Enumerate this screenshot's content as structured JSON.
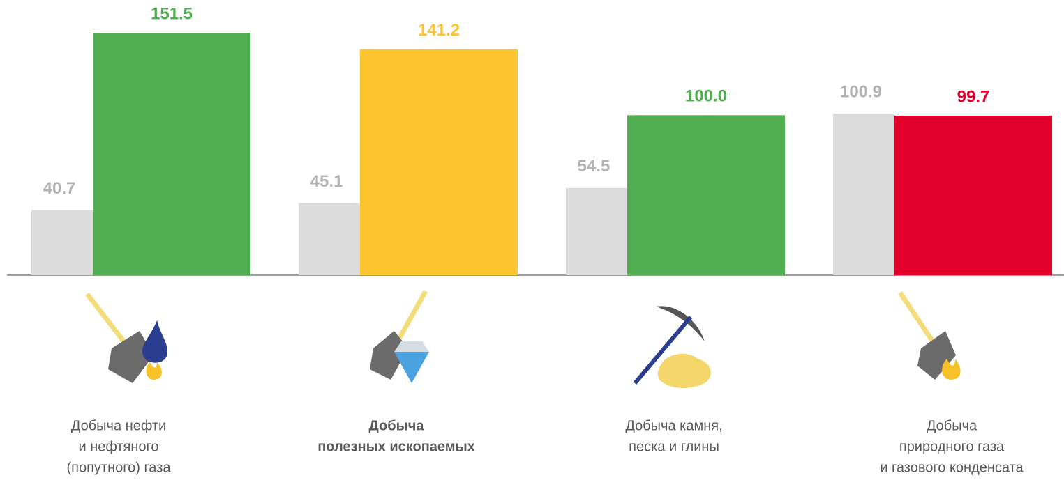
{
  "chart_data": {
    "type": "bar",
    "categories": [
      [
        "Добыча нефти",
        "и нефтяного",
        "(попутного) газа"
      ],
      [
        "Добыча",
        "полезных ископаемых"
      ],
      [
        "Добыча камня,",
        "песка и глины"
      ],
      [
        "Добыча",
        "природного газа",
        "и газового конденсата"
      ]
    ],
    "highlight_category": 1,
    "series": [
      {
        "color": "#dcdcdc",
        "label_color": "#b3b3b3",
        "values": [
          40.7,
          45.1,
          54.5,
          100.9
        ]
      },
      {
        "colors": [
          "#50ae50",
          "#fcc42f",
          "#50ae50",
          "#e2002b"
        ],
        "values": [
          151.5,
          141.2,
          100.0,
          99.7
        ],
        "value_labels": [
          "151.5",
          "141.2",
          "100.0",
          "99.7"
        ]
      }
    ],
    "ylim": [
      0,
      160
    ]
  }
}
